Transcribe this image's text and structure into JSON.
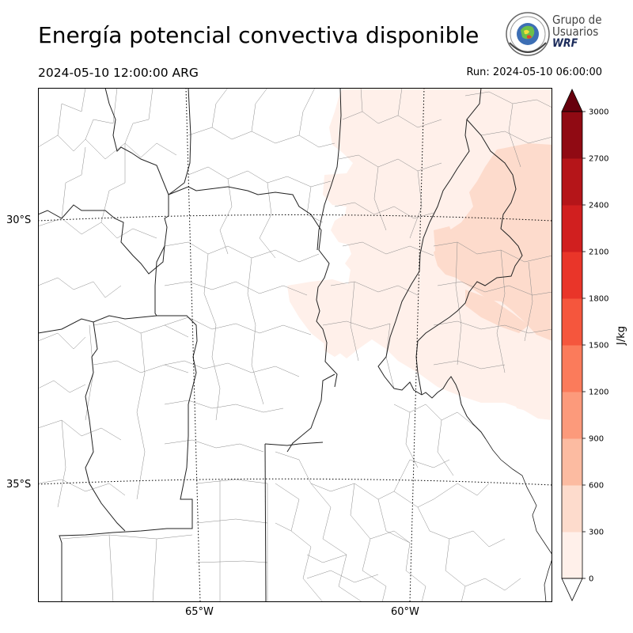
{
  "header": {
    "title": "Energía potencial convectiva disponible",
    "valid_time": "2024-05-10 12:00:00 ARG",
    "run_time": "Run: 2024-05-10 06:00:00"
  },
  "logo": {
    "line1": "Grupo de",
    "line2": "Usuarios",
    "line3": "WRF"
  },
  "map": {
    "lat_labels": [
      "30°S",
      "35°S"
    ],
    "lon_labels": [
      "65°W",
      "60°W"
    ]
  },
  "colorbar": {
    "unit": "J/kg",
    "ticks": [
      "0",
      "300",
      "600",
      "900",
      "1200",
      "1500",
      "1800",
      "2100",
      "2400",
      "2700",
      "3000"
    ],
    "colors": [
      "#fff0ea",
      "#fddbcc",
      "#fcbba1",
      "#fc9a7b",
      "#fb7b5b",
      "#f5563d",
      "#e93529",
      "#d11f1f",
      "#b51519",
      "#900a13"
    ],
    "under_color": "#ffffff",
    "over_color": "#67000d"
  }
}
